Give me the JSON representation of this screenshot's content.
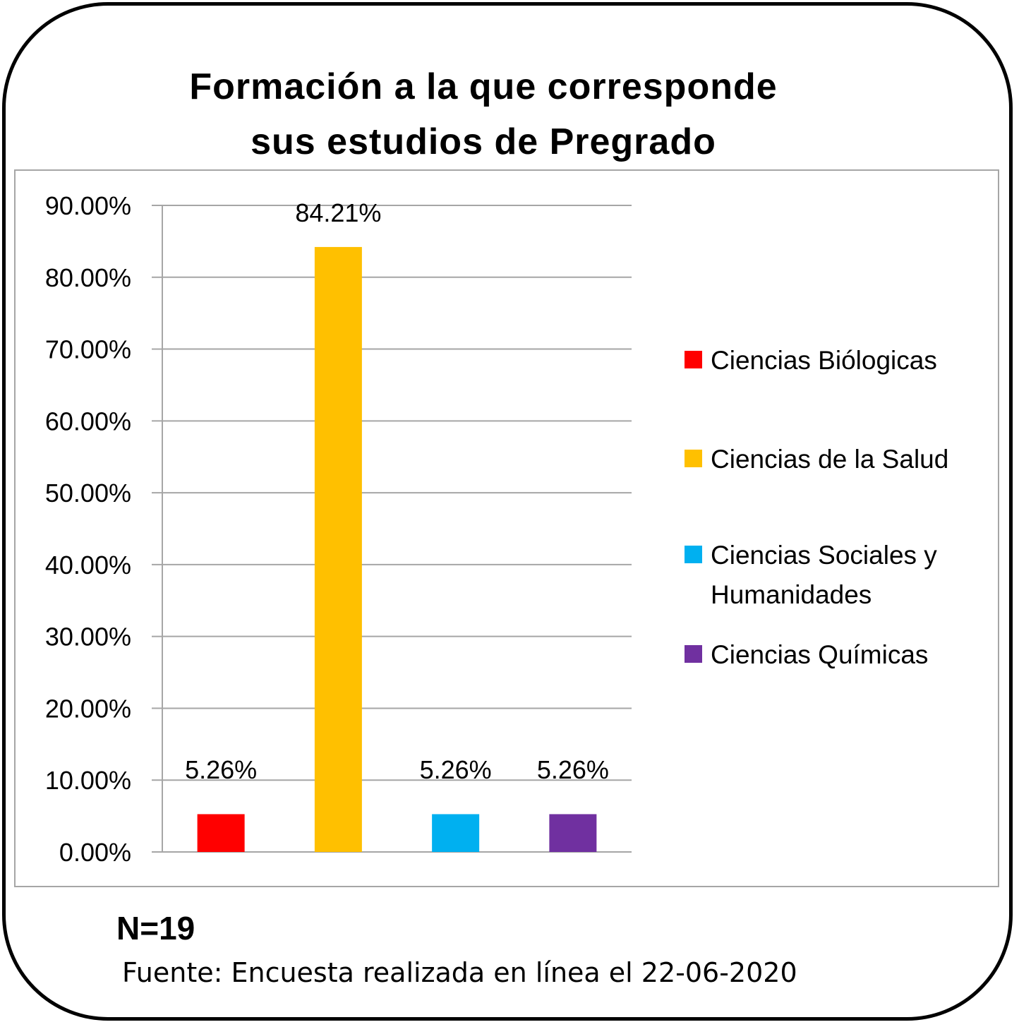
{
  "chart_data": {
    "type": "bar",
    "title_lines": [
      "Formación a la que corresponde",
      "sus estudios de Pregrado"
    ],
    "categories": [
      "Ciencias Biólogicas",
      "Ciencias de la Salud",
      "Ciencias Sociales y Humanidades",
      "Ciencias Químicas"
    ],
    "legend_lines": [
      [
        "Ciencias Biólogicas"
      ],
      [
        "Ciencias de la Salud"
      ],
      [
        "Ciencias Sociales y",
        "Humanidades"
      ],
      [
        "Ciencias Químicas"
      ]
    ],
    "values": [
      5.26,
      84.21,
      5.26,
      5.26
    ],
    "data_labels": [
      "5.26%",
      "84.21%",
      "5.26%",
      "5.26%"
    ],
    "colors": [
      "#ff0000",
      "#ffc000",
      "#00b0f0",
      "#7030a0"
    ],
    "ylim": [
      0,
      90
    ],
    "yticks": [
      "0.00%",
      "10.00%",
      "20.00%",
      "30.00%",
      "40.00%",
      "50.00%",
      "60.00%",
      "70.00%",
      "80.00%",
      "90.00%"
    ],
    "grid": true,
    "legend_position": "right",
    "xlabel": "",
    "ylabel": ""
  },
  "footer": {
    "n": "N=19",
    "source": "Fuente: Encuesta realizada en línea el 22-06-2020"
  }
}
